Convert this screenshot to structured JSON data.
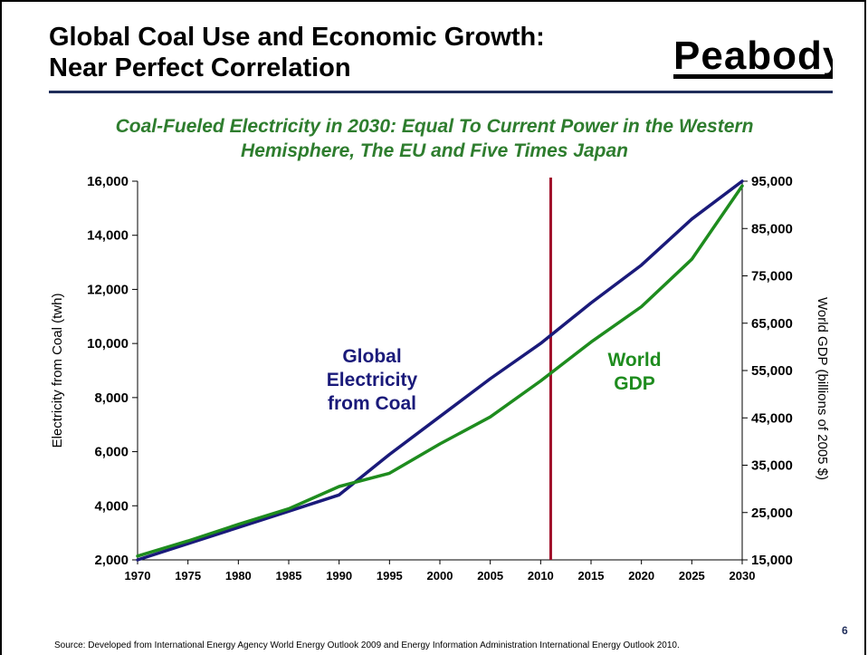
{
  "slide": {
    "title_line1": "Global Coal Use and Economic Growth:",
    "title_line2": "Near Perfect Correlation",
    "logo_text": "Peabody",
    "subtitle_line1": "Coal-Fueled Electricity in 2030: Equal To Current Power in the Western",
    "subtitle_line2": "Hemisphere, The EU and Five Times Japan",
    "source": "Source: Developed from International Energy Agency World Energy Outlook 2009 and Energy Information Administration International Energy Outlook 2010.",
    "page_number": "6"
  },
  "colors": {
    "coal_line": "#1a1a7a",
    "gdp_line": "#1e8c1e",
    "marker_line": "#a0102a",
    "title_rule": "#1f2d5a",
    "subtitle": "#2e7d2e"
  },
  "chart_data": {
    "type": "line",
    "x": [
      1970,
      1975,
      1980,
      1985,
      1990,
      1995,
      2000,
      2005,
      2010,
      2015,
      2020,
      2025,
      2030
    ],
    "x_ticks": [
      "1970",
      "1975",
      "1980",
      "1985",
      "1990",
      "1995",
      "2000",
      "2005",
      "2010",
      "2015",
      "2020",
      "2025",
      "2030"
    ],
    "y_left_ticks": [
      "2,000",
      "4,000",
      "6,000",
      "8,000",
      "10,000",
      "12,000",
      "14,000",
      "16,000"
    ],
    "y_right_ticks": [
      "15,000",
      "25,000",
      "35,000",
      "45,000",
      "55,000",
      "65,000",
      "75,000",
      "85,000",
      "95,000"
    ],
    "ylabel_left": "Electricity from Coal (twh)",
    "ylabel_right": "World GDP (billions of 2005 $)",
    "ylim_left": [
      2000,
      16000
    ],
    "ylim_right": [
      15000,
      95000
    ],
    "xlim": [
      1970,
      2030
    ],
    "vertical_marker_x": 2011,
    "series": [
      {
        "name": "Global Electricity from Coal",
        "axis": "left",
        "label_lines": [
          "Global",
          "Electricity",
          "from Coal"
        ],
        "values": [
          2000,
          2600,
          3200,
          3800,
          4400,
          5900,
          7300,
          8700,
          10000,
          11500,
          12900,
          14600,
          16000
        ]
      },
      {
        "name": "World GDP",
        "axis": "right",
        "label_lines": [
          "World",
          "GDP"
        ],
        "values": [
          15800,
          19000,
          22500,
          25800,
          30500,
          33300,
          39500,
          45200,
          52800,
          61000,
          68500,
          78500,
          94000
        ]
      }
    ]
  }
}
